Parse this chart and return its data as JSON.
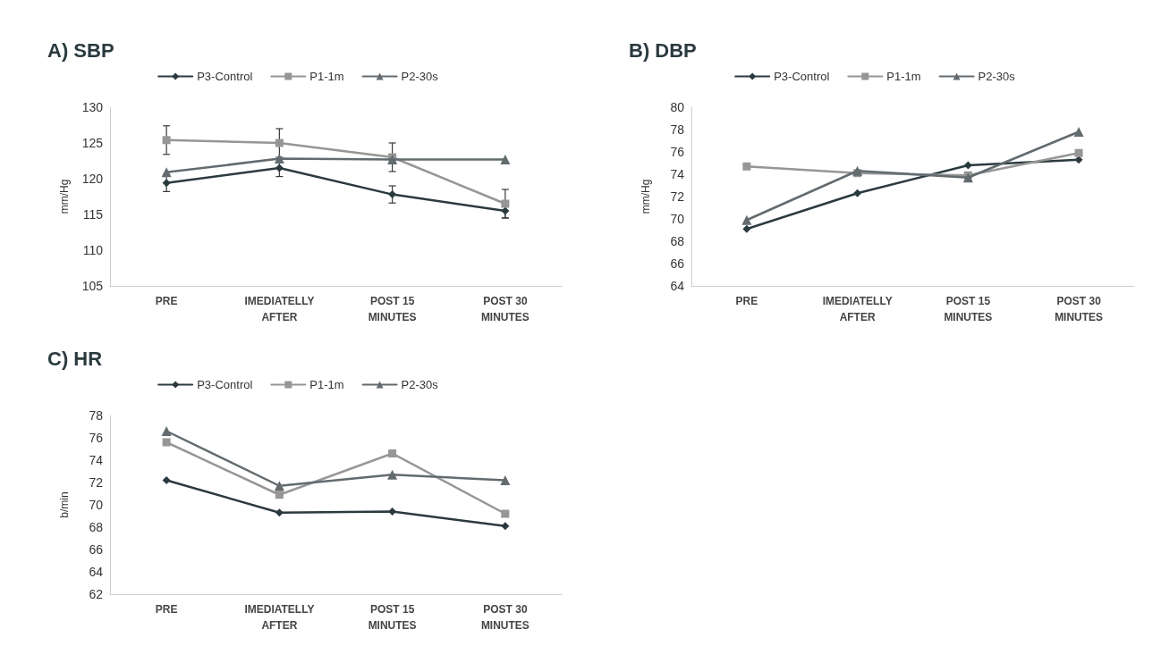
{
  "chart_data": [
    {
      "type": "line",
      "title": "A) SBP",
      "ylabel": "mm/Hg",
      "categories": [
        "PRE",
        "IMEDIATELLY AFTER",
        "POST 15 MINUTES",
        "POST 30 MINUTES"
      ],
      "ylim": [
        105,
        130
      ],
      "yticks": [
        105,
        110,
        115,
        120,
        125,
        130
      ],
      "grid": false,
      "legend": "top",
      "line_style": "solid",
      "series": [
        {
          "name": "P3-Control",
          "color": "#2b3a3f",
          "marker": "diamond",
          "values": [
            119.4,
            121.5,
            117.8,
            115.5
          ],
          "errors": [
            1.2,
            1.2,
            1.2,
            1
          ]
        },
        {
          "name": "P1-1m",
          "color": "#969696",
          "marker": "square",
          "values": [
            125.4,
            125.0,
            123.0,
            116.5
          ],
          "errors": [
            2,
            2,
            2,
            2
          ]
        },
        {
          "name": "P2-30s",
          "color": "#636b6f",
          "marker": "triangle",
          "values": [
            120.9,
            122.8,
            122.7,
            122.7
          ]
        }
      ]
    },
    {
      "type": "line",
      "title": "B) DBP",
      "ylabel": "mm/Hg",
      "categories": [
        "PRE",
        "IMEDIATELLY AFTER",
        "POST 15 MINUTES",
        "POST 30 MINUTES"
      ],
      "ylim": [
        64,
        80
      ],
      "yticks": [
        64,
        66,
        68,
        70,
        72,
        74,
        76,
        78,
        80
      ],
      "grid": false,
      "legend": "top",
      "line_style": "solid",
      "series": [
        {
          "name": "P3-Control",
          "color": "#2b3a3f",
          "marker": "diamond",
          "values": [
            69.1,
            72.3,
            74.8,
            75.3
          ]
        },
        {
          "name": "P1-1m",
          "color": "#969696",
          "marker": "square",
          "values": [
            74.7,
            74.1,
            73.9,
            75.9
          ]
        },
        {
          "name": "P2-30s",
          "color": "#636b6f",
          "marker": "triangle",
          "values": [
            69.9,
            74.3,
            73.7,
            77.8
          ]
        }
      ]
    },
    {
      "type": "line",
      "title": "C) HR",
      "ylabel": "b/min",
      "categories": [
        "PRE",
        "IMEDIATELLY AFTER",
        "POST 15 MINUTES",
        "POST 30 MINUTES"
      ],
      "ylim": [
        62,
        78
      ],
      "yticks": [
        62,
        64,
        66,
        68,
        70,
        72,
        74,
        76,
        78
      ],
      "grid": false,
      "legend": "top",
      "line_style": "solid",
      "series": [
        {
          "name": "P3-Control",
          "color": "#2b3a3f",
          "marker": "diamond",
          "values": [
            72.2,
            69.3,
            69.4,
            68.1
          ]
        },
        {
          "name": "P1-1m",
          "color": "#969696",
          "marker": "square",
          "values": [
            75.6,
            70.9,
            74.6,
            69.2
          ]
        },
        {
          "name": "P2-30s",
          "color": "#636b6f",
          "marker": "triangle",
          "values": [
            76.6,
            71.7,
            72.7,
            72.2
          ]
        }
      ]
    }
  ]
}
